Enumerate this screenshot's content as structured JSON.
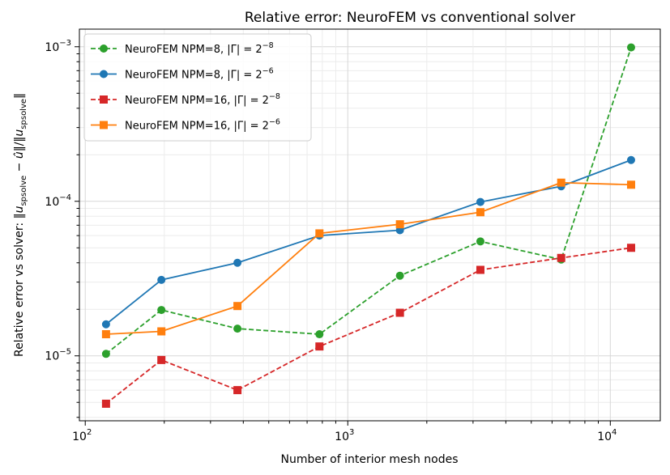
{
  "chart_data": {
    "type": "line",
    "title": "Relative error: NeuroFEM vs conventional solver",
    "xlabel": "Number of interior mesh nodes",
    "ylabel": "Relative error vs solver: ‖u_spsolve − û‖/‖u_spsolve‖",
    "xscale": "log",
    "yscale": "log",
    "xlim": [
      95,
      15500
    ],
    "ylim": [
      3.8e-06,
      0.0013
    ],
    "grid": "on (major and minor)",
    "legend_position": "top-left",
    "x_ticks": [
      {
        "label": "10",
        "exp": "2",
        "value": 100
      },
      {
        "label": "10",
        "exp": "3",
        "value": 1000
      },
      {
        "label": "10",
        "exp": "4",
        "value": 10000
      }
    ],
    "y_ticks": [
      {
        "label": "10",
        "exp": "−5",
        "value": 1e-05
      },
      {
        "label": "10",
        "exp": "−4",
        "value": 0.0001
      },
      {
        "label": "10",
        "exp": "−3",
        "value": 0.001
      }
    ],
    "x": [
      120,
      195,
      380,
      780,
      1580,
      3200,
      6500,
      12000
    ],
    "series": [
      {
        "name": "NeuroFEM  NPM=8,  |Γ| = 2^−8",
        "legend_main": "NeuroFEM  NPM=8,  |Γ| = 2",
        "legend_exp": "−8",
        "color": "#2ca02c",
        "marker": "circle",
        "linestyle": "dashed",
        "values": [
          1.03e-05,
          1.98e-05,
          1.5e-05,
          1.38e-05,
          3.3e-05,
          5.5e-05,
          4.2e-05,
          0.00099
        ]
      },
      {
        "name": "NeuroFEM  NPM=8,  |Γ| = 2^−6",
        "legend_main": "NeuroFEM  NPM=8,  |Γ| = 2",
        "legend_exp": "−6",
        "color": "#1f77b4",
        "marker": "circle",
        "linestyle": "solid",
        "values": [
          1.6e-05,
          3.1e-05,
          4e-05,
          6e-05,
          6.5e-05,
          9.9e-05,
          0.000125,
          0.000185
        ]
      },
      {
        "name": "NeuroFEM  NPM=16, |Γ| = 2^−8",
        "legend_main": "NeuroFEM  NPM=16, |Γ| = 2",
        "legend_exp": "−8",
        "color": "#d62728",
        "marker": "square",
        "linestyle": "dashed",
        "values": [
          4.9e-06,
          9.4e-06,
          6e-06,
          1.15e-05,
          1.9e-05,
          3.6e-05,
          4.3e-05,
          5e-05
        ]
      },
      {
        "name": "NeuroFEM  NPM=16, |Γ| = 2^−6",
        "legend_main": "NeuroFEM  NPM=16, |Γ| = 2",
        "legend_exp": "−6",
        "color": "#ff7f0e",
        "marker": "square",
        "linestyle": "solid",
        "values": [
          1.38e-05,
          1.44e-05,
          2.1e-05,
          6.2e-05,
          7.1e-05,
          8.5e-05,
          0.000132,
          0.000128
        ]
      }
    ]
  }
}
